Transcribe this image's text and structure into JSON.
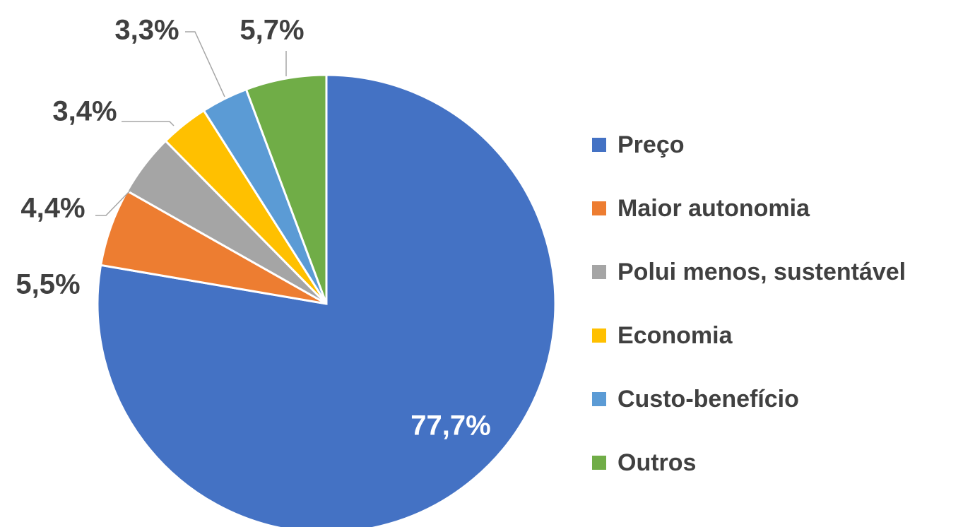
{
  "chart_data": {
    "type": "pie",
    "categories": [
      "Preço",
      "Maior autonomia",
      "Polui menos, sustentável",
      "Economia",
      "Custo-benefício",
      "Outros"
    ],
    "values": [
      77.7,
      5.5,
      4.4,
      3.4,
      3.3,
      5.7
    ],
    "value_labels": [
      "77,7%",
      "5,5%",
      "4,4%",
      "3,4%",
      "3,3%",
      "5,7%"
    ],
    "colors": [
      "#4472c4",
      "#ed7d31",
      "#a5a5a5",
      "#ffc000",
      "#5b9bd5",
      "#70ad47"
    ],
    "legend": "right"
  }
}
